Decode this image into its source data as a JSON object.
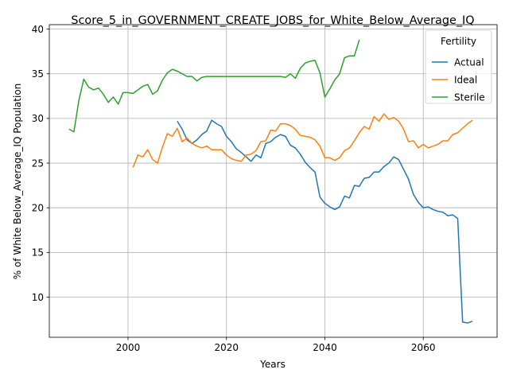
{
  "chart_data": {
    "type": "line",
    "title": "Score_5_in_GOVERNMENT_CREATE_JOBS_for_White_Below_Average_IQ",
    "xlabel": "Years",
    "ylabel": "% of White Below_Average_IQ Population",
    "xlim": [
      1984,
      2075
    ],
    "ylim": [
      5.5,
      40.5
    ],
    "x_ticks": [
      2000,
      2020,
      2040,
      2060
    ],
    "y_ticks": [
      10,
      15,
      20,
      25,
      30,
      35,
      40
    ],
    "grid": true,
    "legend": {
      "title": "Fertility",
      "placement": "top-right"
    },
    "series": [
      {
        "name": "Actual",
        "color": "#1f77b4",
        "x": [
          2010,
          2011,
          2012,
          2013,
          2014,
          2015,
          2016,
          2017,
          2018,
          2019,
          2020,
          2021,
          2022,
          2023,
          2024,
          2025,
          2026,
          2027,
          2028,
          2029,
          2030,
          2031,
          2032,
          2033,
          2034,
          2035,
          2036,
          2037,
          2038,
          2039,
          2040,
          2041,
          2042,
          2043,
          2044,
          2045,
          2046,
          2047,
          2048,
          2049,
          2050,
          2051,
          2052,
          2053,
          2054,
          2055,
          2056,
          2057,
          2058,
          2059,
          2060,
          2061,
          2062,
          2063,
          2064,
          2065,
          2066,
          2067,
          2068,
          2069,
          2070
        ],
        "y": [
          29.7,
          28.8,
          27.6,
          27.2,
          27.6,
          28.2,
          28.6,
          29.8,
          29.4,
          29.1,
          28.0,
          27.4,
          26.6,
          26.2,
          25.7,
          25.2,
          25.9,
          25.6,
          27.2,
          27.4,
          27.9,
          28.2,
          28.0,
          27.0,
          26.7,
          26.0,
          25.1,
          24.5,
          24.0,
          21.2,
          20.5,
          20.1,
          19.8,
          20.1,
          21.3,
          21.1,
          22.5,
          22.4,
          23.3,
          23.4,
          24.0,
          24.0,
          24.6,
          25.0,
          25.7,
          25.4,
          24.3,
          23.2,
          21.5,
          20.6,
          20.0,
          20.1,
          19.8,
          19.6,
          19.5,
          19.1,
          19.2,
          18.8,
          7.2,
          7.1,
          7.3
        ]
      },
      {
        "name": "Ideal",
        "color": "#ff7f0e",
        "x": [
          2001,
          2002,
          2003,
          2004,
          2005,
          2006,
          2007,
          2008,
          2009,
          2010,
          2011,
          2012,
          2013,
          2014,
          2015,
          2016,
          2017,
          2018,
          2019,
          2020,
          2021,
          2022,
          2023,
          2024,
          2025,
          2026,
          2027,
          2028,
          2029,
          2030,
          2031,
          2032,
          2033,
          2034,
          2035,
          2036,
          2037,
          2038,
          2039,
          2040,
          2041,
          2042,
          2043,
          2044,
          2045,
          2046,
          2047,
          2048,
          2049,
          2050,
          2051,
          2052,
          2053,
          2054,
          2055,
          2056,
          2057,
          2058,
          2059,
          2060,
          2061,
          2062,
          2063,
          2064,
          2065,
          2066,
          2067,
          2068,
          2069,
          2070
        ],
        "y": [
          24.5,
          25.9,
          25.7,
          26.5,
          25.4,
          25.0,
          26.8,
          28.3,
          28.0,
          28.9,
          27.4,
          27.8,
          27.2,
          26.9,
          26.7,
          26.9,
          26.5,
          26.5,
          26.5,
          25.9,
          25.5,
          25.3,
          25.2,
          25.9,
          26.0,
          26.4,
          27.4,
          27.5,
          28.7,
          28.6,
          29.4,
          29.4,
          29.2,
          28.8,
          28.1,
          28.0,
          27.9,
          27.6,
          26.9,
          25.6,
          25.6,
          25.3,
          25.6,
          26.4,
          26.7,
          27.5,
          28.4,
          29.1,
          28.8,
          30.2,
          29.7,
          30.5,
          29.9,
          30.1,
          29.7,
          28.8,
          27.4,
          27.5,
          26.7,
          27.1,
          26.7,
          26.9,
          27.1,
          27.5,
          27.5,
          28.2,
          28.4,
          28.9,
          29.4,
          29.8
        ]
      },
      {
        "name": "Sterile",
        "color": "#2ca02c",
        "x": [
          1988,
          1989,
          1990,
          1991,
          1992,
          1993,
          1994,
          1995,
          1996,
          1997,
          1998,
          1999,
          2000,
          2001,
          2002,
          2003,
          2004,
          2005,
          2006,
          2007,
          2008,
          2009,
          2010,
          2011,
          2012,
          2013,
          2014,
          2015,
          2016,
          2017,
          2018,
          2019,
          2020,
          2021,
          2022,
          2023,
          2024,
          2025,
          2026,
          2027,
          2028,
          2029,
          2030,
          2031,
          2032,
          2033,
          2034,
          2035,
          2036,
          2037,
          2038,
          2039,
          2040,
          2041,
          2042,
          2043,
          2044,
          2045,
          2046,
          2047
        ],
        "y": [
          28.8,
          28.5,
          32.0,
          34.4,
          33.5,
          33.2,
          33.4,
          32.7,
          31.8,
          32.4,
          31.6,
          32.9,
          32.9,
          32.8,
          33.2,
          33.6,
          33.8,
          32.7,
          33.1,
          34.3,
          35.1,
          35.5,
          35.3,
          35.0,
          34.7,
          34.7,
          34.2,
          34.6,
          34.7,
          34.7,
          34.7,
          34.7,
          34.7,
          34.7,
          34.7,
          34.7,
          34.7,
          34.7,
          34.7,
          34.7,
          34.7,
          34.7,
          34.7,
          34.7,
          34.6,
          35.0,
          34.5,
          35.6,
          36.2,
          36.4,
          36.5,
          35.1,
          32.4,
          33.3,
          34.3,
          35.0,
          36.8,
          37.0,
          37.0,
          38.8
        ]
      }
    ]
  }
}
